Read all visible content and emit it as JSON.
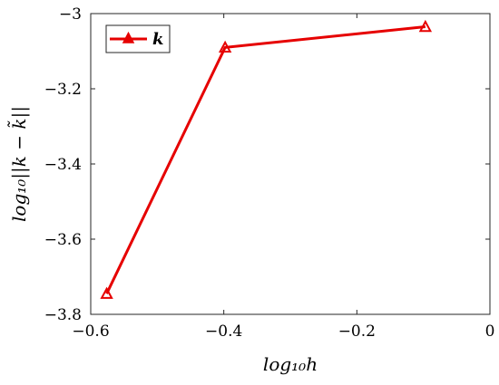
{
  "chart_data": {
    "type": "line",
    "xlabel": "log₁₀h",
    "ylabel": "log₁₀||k − k̃||",
    "xlim": [
      -0.6,
      0
    ],
    "ylim": [
      -3.8,
      -3.0
    ],
    "xticks": [
      "−0.6",
      "−0.4",
      "−0.2",
      "0"
    ],
    "xtick_values": [
      -0.6,
      -0.4,
      -0.2,
      0
    ],
    "yticks": [
      "−3",
      "−3.2",
      "−3.4",
      "−3.6",
      "−3.8"
    ],
    "ytick_values": [
      -3.0,
      -3.2,
      -3.4,
      -3.6,
      -3.8
    ],
    "grid": false,
    "legend_position": "top-left",
    "series": [
      {
        "name": "k",
        "color": "#e60000",
        "marker": "triangle",
        "x": [
          -0.576,
          -0.398,
          -0.097
        ],
        "y": [
          -3.745,
          -3.09,
          -3.035
        ]
      }
    ]
  }
}
